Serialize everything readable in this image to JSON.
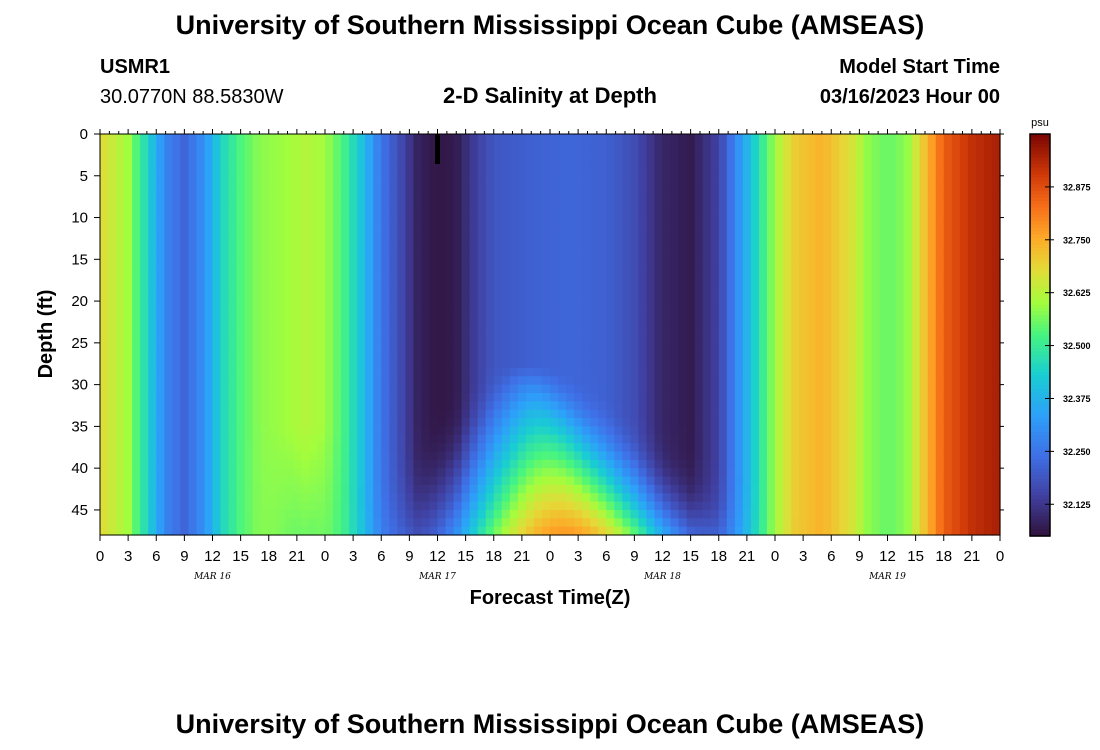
{
  "header": {
    "title": "University of Southern Mississippi Ocean Cube (AMSEAS)",
    "station_id": "USMR1",
    "coordinates": "30.0770N  88.5830W",
    "subtitle": "2-D Salinity at Depth",
    "model_start_label": "Model Start Time",
    "model_start_value": "03/16/2023 Hour 00"
  },
  "footer": {
    "title": "University of Southern Mississippi Ocean Cube (AMSEAS)"
  },
  "chart_data": {
    "type": "heatmap",
    "title": "2-D Salinity at Depth",
    "xlabel": "Forecast Time(Z)",
    "ylabel": "Depth (ft)",
    "x_range_hours": [
      0,
      96
    ],
    "ylim": [
      0,
      48
    ],
    "x_tick_labels": [
      "0",
      "3",
      "6",
      "9",
      "12",
      "15",
      "18",
      "21",
      "0",
      "3",
      "6",
      "9",
      "12",
      "15",
      "18",
      "21",
      "0",
      "3",
      "6",
      "9",
      "12",
      "15",
      "18",
      "21",
      "0",
      "3",
      "6",
      "9",
      "12",
      "15",
      "18",
      "21",
      "0"
    ],
    "day_labels": [
      {
        "label": "MAR 16",
        "hour": 12
      },
      {
        "label": "MAR 17",
        "hour": 36
      },
      {
        "label": "MAR 18",
        "hour": 60
      },
      {
        "label": "MAR 19",
        "hour": 84
      }
    ],
    "y_ticks": [
      0,
      5,
      10,
      15,
      20,
      25,
      30,
      35,
      40,
      45
    ],
    "colorbar": {
      "units": "psu",
      "range": [
        32.05,
        33.0
      ],
      "ticks": [
        "32.125",
        "32.250",
        "32.375",
        "32.500",
        "32.625",
        "32.750",
        "32.875"
      ],
      "tick_values": [
        32.125,
        32.25,
        32.375,
        32.5,
        32.625,
        32.75,
        32.875
      ]
    },
    "current_time_marker_hour": 36,
    "salinity_near_surface_profile": [
      {
        "hour": 0,
        "psu": 32.68
      },
      {
        "hour": 3,
        "psu": 32.6
      },
      {
        "hour": 5,
        "psu": 32.45
      },
      {
        "hour": 7,
        "psu": 32.28
      },
      {
        "hour": 9,
        "psu": 32.22
      },
      {
        "hour": 11,
        "psu": 32.3
      },
      {
        "hour": 13,
        "psu": 32.45
      },
      {
        "hour": 15,
        "psu": 32.53
      },
      {
        "hour": 17,
        "psu": 32.58
      },
      {
        "hour": 20,
        "psu": 32.6
      },
      {
        "hour": 22,
        "psu": 32.62
      },
      {
        "hour": 24,
        "psu": 32.6
      },
      {
        "hour": 26,
        "psu": 32.52
      },
      {
        "hour": 28,
        "psu": 32.4
      },
      {
        "hour": 30,
        "psu": 32.25
      },
      {
        "hour": 32,
        "psu": 32.17
      },
      {
        "hour": 34,
        "psu": 32.08
      },
      {
        "hour": 36,
        "psu": 32.06
      },
      {
        "hour": 38,
        "psu": 32.07
      },
      {
        "hour": 40,
        "psu": 32.14
      },
      {
        "hour": 42,
        "psu": 32.19
      },
      {
        "hour": 46,
        "psu": 32.21
      },
      {
        "hour": 50,
        "psu": 32.22
      },
      {
        "hour": 54,
        "psu": 32.21
      },
      {
        "hour": 57,
        "psu": 32.17
      },
      {
        "hour": 60,
        "psu": 32.09
      },
      {
        "hour": 63,
        "psu": 32.07
      },
      {
        "hour": 66,
        "psu": 32.15
      },
      {
        "hour": 68,
        "psu": 32.3
      },
      {
        "hour": 70,
        "psu": 32.45
      },
      {
        "hour": 72,
        "psu": 32.6
      },
      {
        "hour": 74,
        "psu": 32.7
      },
      {
        "hour": 77,
        "psu": 32.74
      },
      {
        "hour": 80,
        "psu": 32.67
      },
      {
        "hour": 82,
        "psu": 32.58
      },
      {
        "hour": 84,
        "psu": 32.55
      },
      {
        "hour": 86,
        "psu": 32.58
      },
      {
        "hour": 88,
        "psu": 32.72
      },
      {
        "hour": 90,
        "psu": 32.85
      },
      {
        "hour": 93,
        "psu": 32.92
      },
      {
        "hour": 96,
        "psu": 32.95
      }
    ],
    "deep_features": {
      "high_salinity_plume": {
        "center_hour": 48.5,
        "center_depth_ft": 46,
        "psu": 32.78
      },
      "shoaling_plume_top_depth_ft": 28
    }
  }
}
